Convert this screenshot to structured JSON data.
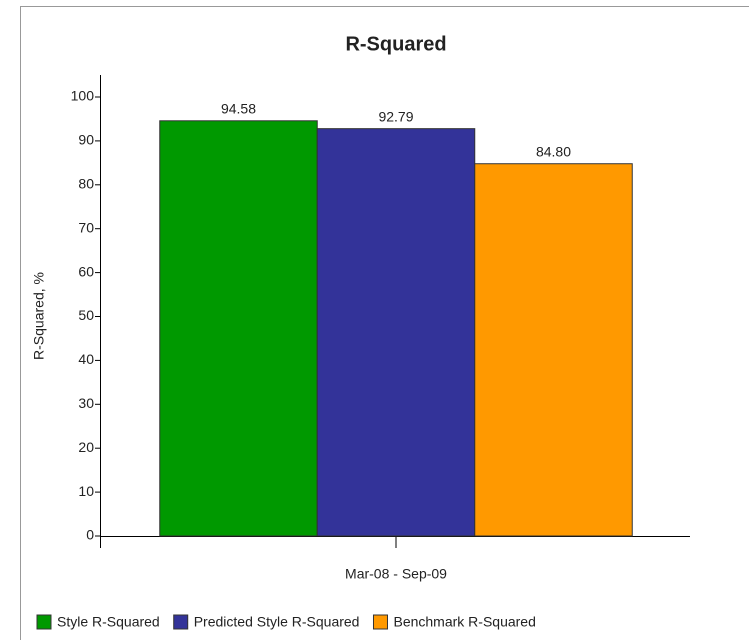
{
  "chart_data": {
    "type": "bar",
    "title": "R-Squared",
    "y_label": "R-Squared, %",
    "categories": [
      "Mar-08 - Sep-09"
    ],
    "series": [
      {
        "name": "Style R-Squared",
        "color": "#009900",
        "values": [
          94.58
        ],
        "value_labels": [
          "94.58"
        ]
      },
      {
        "name": "Predicted Style R-Squared",
        "color": "#333399",
        "values": [
          92.79
        ],
        "value_labels": [
          "92.79"
        ]
      },
      {
        "name": "Benchmark R-Squared",
        "color": "#ff9900",
        "values": [
          84.8
        ],
        "value_labels": [
          "84.80"
        ]
      }
    ],
    "ylim": [
      0,
      100
    ],
    "yticks": [
      0,
      10,
      20,
      30,
      40,
      50,
      60,
      70,
      80,
      90,
      100
    ],
    "legend": "bottom"
  }
}
